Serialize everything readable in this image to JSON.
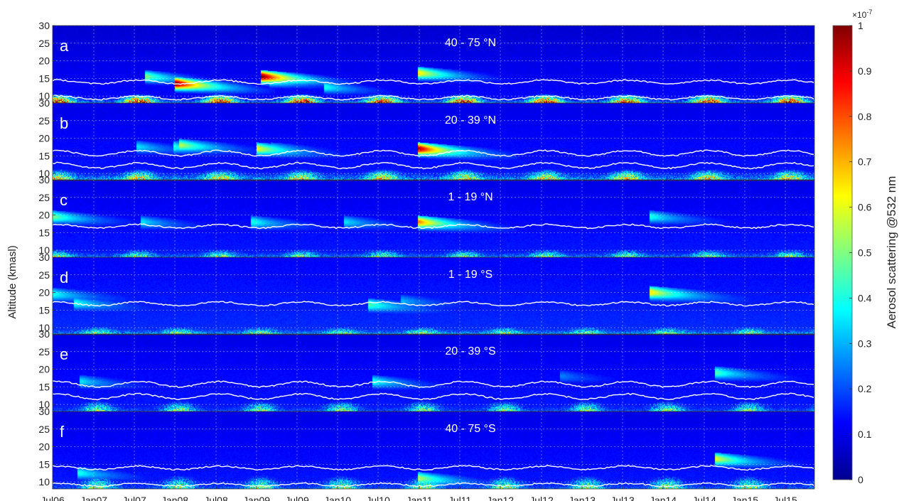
{
  "chart_data": {
    "type": "heatmap",
    "ylabel": "Altitude (kmasl)",
    "colorbar": {
      "label": "Aerosol scattering @532 nm",
      "multiplier": "×10",
      "exponent": "-7",
      "ticks": [
        "0",
        "0.1",
        "0.2",
        "0.3",
        "0.4",
        "0.5",
        "0.6",
        "0.7",
        "0.8",
        "0.9",
        "1"
      ],
      "range": [
        0,
        1
      ]
    },
    "xticks": [
      "Jul06",
      "Jan07",
      "Jul07",
      "Jan08",
      "Jul08",
      "Jan09",
      "Jul09",
      "Jan10",
      "Jul10",
      "Jan11",
      "Jul11",
      "Jan12",
      "Jul12",
      "Jan13",
      "Jul13",
      "Jan14",
      "Jul14",
      "Jan15",
      "Jul15"
    ],
    "yticks": [
      "10",
      "15",
      "20",
      "25",
      "30"
    ],
    "ylim": [
      8,
      30
    ],
    "grid": true,
    "panels": [
      {
        "letter": "a",
        "title": "40 - 75 °N",
        "background": 0.08,
        "lower_layer": {
          "top_km": 11,
          "base": 0.25,
          "summer_peaks": 0.8,
          "peak_phase": "summer"
        },
        "tropopause_lines_km": [
          [
            13.5,
            14.5
          ],
          [
            9,
            10
          ]
        ],
        "plumes": [
          {
            "time": 2.3,
            "top_km": 16,
            "value": 0.5
          },
          {
            "time": 3.05,
            "top_km": 14,
            "value": 1.0
          },
          {
            "time": 5.15,
            "top_km": 16,
            "value": 1.0
          },
          {
            "time": 5.35,
            "top_km": 15,
            "value": 0.5
          },
          {
            "time": 6.7,
            "top_km": 13,
            "value": 0.4
          },
          {
            "time": 9.0,
            "top_km": 17,
            "value": 0.65
          }
        ]
      },
      {
        "letter": "b",
        "title": "20 - 39 °N",
        "background": 0.1,
        "lower_layer": {
          "top_km": 12,
          "base": 0.3,
          "summer_peaks": 0.45,
          "peak_phase": "summer"
        },
        "tropopause_lines_km": [
          [
            15,
            16.5
          ],
          [
            11.5,
            13
          ]
        ],
        "plumes": [
          {
            "time": 2.1,
            "top_km": 18,
            "value": 0.35
          },
          {
            "time": 3.0,
            "top_km": 18,
            "value": 0.4
          },
          {
            "time": 3.15,
            "top_km": 18.5,
            "value": 0.55
          },
          {
            "time": 5.05,
            "top_km": 17.5,
            "value": 0.6
          },
          {
            "time": 5.4,
            "top_km": 17.5,
            "value": 0.4
          },
          {
            "time": 9.0,
            "top_km": 17.5,
            "value": 0.95
          }
        ]
      },
      {
        "letter": "c",
        "title": "1 - 19 °N",
        "background": 0.1,
        "lower_layer": {
          "top_km": 11,
          "base": 0.25,
          "summer_peaks": 0.3,
          "peak_phase": "summer"
        },
        "tropopause_lines_km": [
          [
            16.3,
            17.3
          ]
        ],
        "plumes": [
          {
            "time": 0.0,
            "top_km": 20,
            "value": 0.5
          },
          {
            "time": 2.2,
            "top_km": 18.5,
            "value": 0.35
          },
          {
            "time": 4.9,
            "top_km": 18.5,
            "value": 0.4
          },
          {
            "time": 7.2,
            "top_km": 18.5,
            "value": 0.35
          },
          {
            "time": 9.0,
            "top_km": 18.5,
            "value": 0.75
          },
          {
            "time": 14.7,
            "top_km": 20,
            "value": 0.4
          }
        ]
      },
      {
        "letter": "d",
        "title": "1 - 19 °S",
        "background": 0.12,
        "lower_layer": {
          "top_km": 11,
          "base": 0.3,
          "summer_peaks": 0.3,
          "peak_phase": "winter"
        },
        "tropopause_lines_km": [
          [
            16.3,
            17.3
          ]
        ],
        "plumes": [
          {
            "time": 0.0,
            "top_km": 20,
            "value": 0.4
          },
          {
            "time": 0.55,
            "top_km": 17.5,
            "value": 0.4
          },
          {
            "time": 7.8,
            "top_km": 17,
            "value": 0.45
          },
          {
            "time": 8.6,
            "top_km": 18,
            "value": 0.3
          },
          {
            "time": 14.7,
            "top_km": 20.5,
            "value": 0.65
          }
        ]
      },
      {
        "letter": "e",
        "title": "20 - 39 °S",
        "background": 0.1,
        "lower_layer": {
          "top_km": 12,
          "base": 0.2,
          "summer_peaks": 0.35,
          "peak_phase": "winter"
        },
        "tropopause_lines_km": [
          [
            15,
            16.5
          ],
          [
            11.5,
            13
          ]
        ],
        "plumes": [
          {
            "time": 0.7,
            "top_km": 17,
            "value": 0.35
          },
          {
            "time": 7.9,
            "top_km": 17,
            "value": 0.4
          },
          {
            "time": 12.5,
            "top_km": 18.5,
            "value": 0.25
          },
          {
            "time": 16.3,
            "top_km": 19.5,
            "value": 0.45
          }
        ]
      },
      {
        "letter": "f",
        "title": "40 - 75 °S",
        "background": 0.1,
        "lower_layer": {
          "top_km": 13,
          "base": 0.2,
          "summer_peaks": 0.35,
          "peak_phase": "winter"
        },
        "tropopause_lines_km": [
          [
            13.5,
            14.5
          ],
          [
            8.8,
            9.6
          ]
        ],
        "plumes": [
          {
            "time": 0.65,
            "top_km": 13,
            "value": 0.4
          },
          {
            "time": 9.0,
            "top_km": 11.5,
            "value": 0.55
          },
          {
            "time": 16.3,
            "top_km": 17,
            "value": 0.6
          }
        ]
      }
    ]
  }
}
